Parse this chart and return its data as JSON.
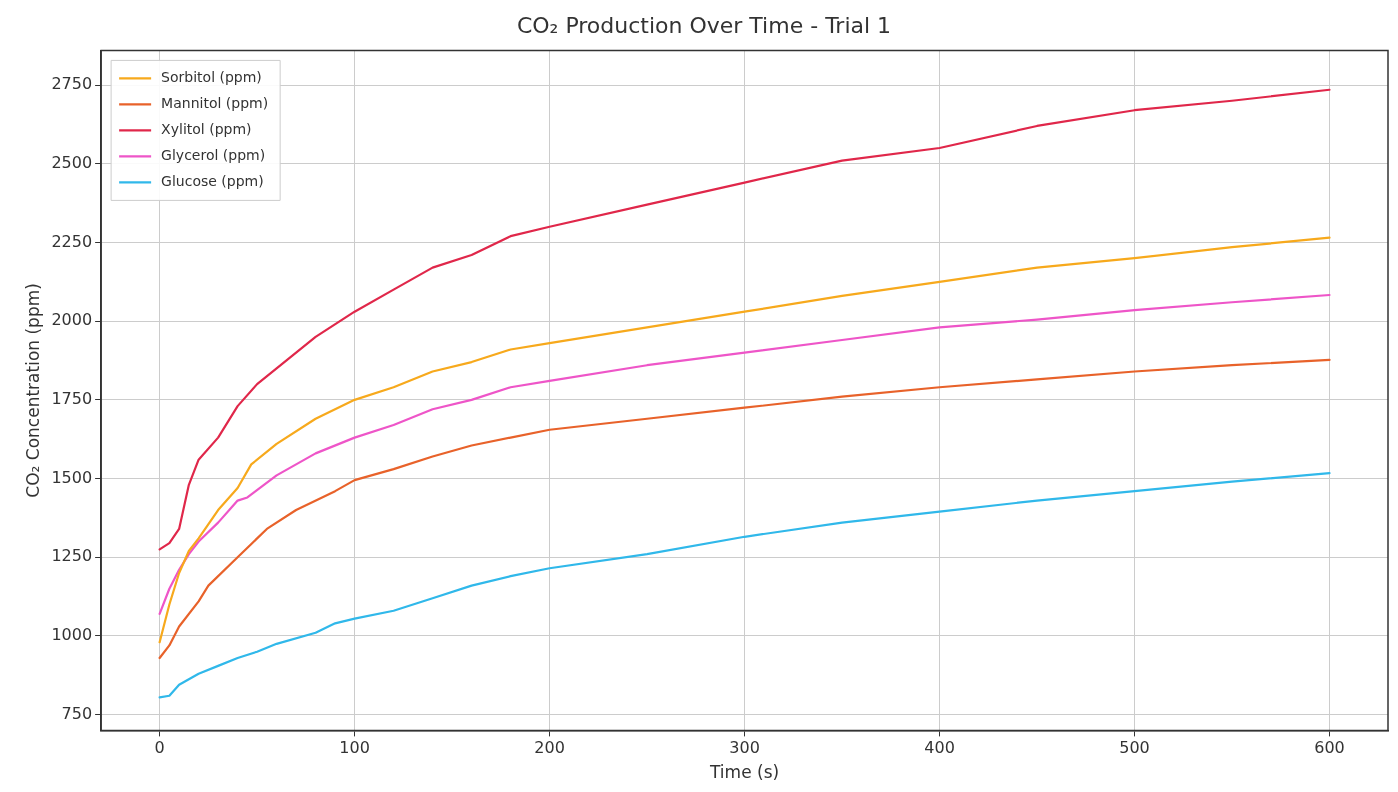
{
  "chart_data": {
    "type": "line",
    "title": "CO₂ Production Over Time - Trial 1",
    "xlabel": "Time (s)",
    "ylabel": "CO₂ Concentration (ppm)",
    "xlim": [
      -30,
      630
    ],
    "xticks": [
      0,
      100,
      200,
      300,
      400,
      500,
      600
    ],
    "ylim": [
      700,
      2860
    ],
    "yticks": [
      750,
      1000,
      1250,
      1500,
      1750,
      2000,
      2250,
      2500,
      2750
    ],
    "grid": true,
    "legend": "top left",
    "line_style": "solid",
    "marker": "none",
    "series": [
      {
        "name": "Sorbitol (ppm)",
        "color": "#f7a91c",
        "x": [
          0,
          5,
          10,
          15,
          20,
          30,
          40,
          47,
          60,
          80,
          100,
          120,
          140,
          160,
          180,
          200,
          250,
          300,
          350,
          400,
          450,
          500,
          550,
          600
        ],
        "values": [
          980,
          1100,
          1200,
          1270,
          1310,
          1400,
          1470,
          1545,
          1610,
          1690,
          1750,
          1790,
          1840,
          1870,
          1910,
          1930,
          1980,
          2030,
          2080,
          2125,
          2170,
          2200,
          2235,
          2265
        ]
      },
      {
        "name": "Mannitol (ppm)",
        "color": "#e8622a",
        "x": [
          0,
          5,
          10,
          20,
          25,
          40,
          55,
          70,
          90,
          100,
          120,
          140,
          160,
          180,
          200,
          250,
          300,
          350,
          400,
          450,
          500,
          550,
          600
        ],
        "values": [
          930,
          970,
          1030,
          1110,
          1160,
          1250,
          1340,
          1400,
          1460,
          1495,
          1530,
          1570,
          1605,
          1630,
          1655,
          1690,
          1725,
          1760,
          1790,
          1815,
          1840,
          1860,
          1877
        ]
      },
      {
        "name": "Xylitol (ppm)",
        "color": "#e0274a",
        "x": [
          0,
          5,
          10,
          15,
          20,
          30,
          40,
          50,
          60,
          80,
          100,
          120,
          140,
          160,
          180,
          200,
          250,
          300,
          350,
          400,
          450,
          500,
          550,
          600
        ],
        "values": [
          1275,
          1295,
          1340,
          1480,
          1560,
          1630,
          1730,
          1800,
          1850,
          1950,
          2030,
          2100,
          2170,
          2210,
          2270,
          2300,
          2370,
          2440,
          2510,
          2550,
          2620,
          2670,
          2700,
          2735
        ]
      },
      {
        "name": "Glycerol (ppm)",
        "color": "#ee55c8",
        "x": [
          0,
          5,
          10,
          15,
          20,
          30,
          40,
          45,
          60,
          80,
          100,
          120,
          140,
          160,
          180,
          200,
          250,
          300,
          350,
          400,
          450,
          500,
          550,
          600
        ],
        "values": [
          1070,
          1150,
          1210,
          1260,
          1300,
          1360,
          1430,
          1440,
          1510,
          1580,
          1630,
          1670,
          1720,
          1750,
          1790,
          1810,
          1860,
          1900,
          1940,
          1980,
          2005,
          2035,
          2060,
          2083
        ]
      },
      {
        "name": "Glucose (ppm)",
        "color": "#30b8ea",
        "x": [
          0,
          5,
          10,
          20,
          30,
          40,
          50,
          60,
          80,
          90,
          100,
          120,
          140,
          160,
          180,
          200,
          250,
          300,
          350,
          400,
          450,
          500,
          550,
          600
        ],
        "values": [
          805,
          810,
          845,
          880,
          905,
          930,
          950,
          975,
          1010,
          1040,
          1055,
          1080,
          1120,
          1160,
          1190,
          1215,
          1260,
          1315,
          1360,
          1395,
          1430,
          1460,
          1490,
          1517
        ]
      }
    ]
  }
}
